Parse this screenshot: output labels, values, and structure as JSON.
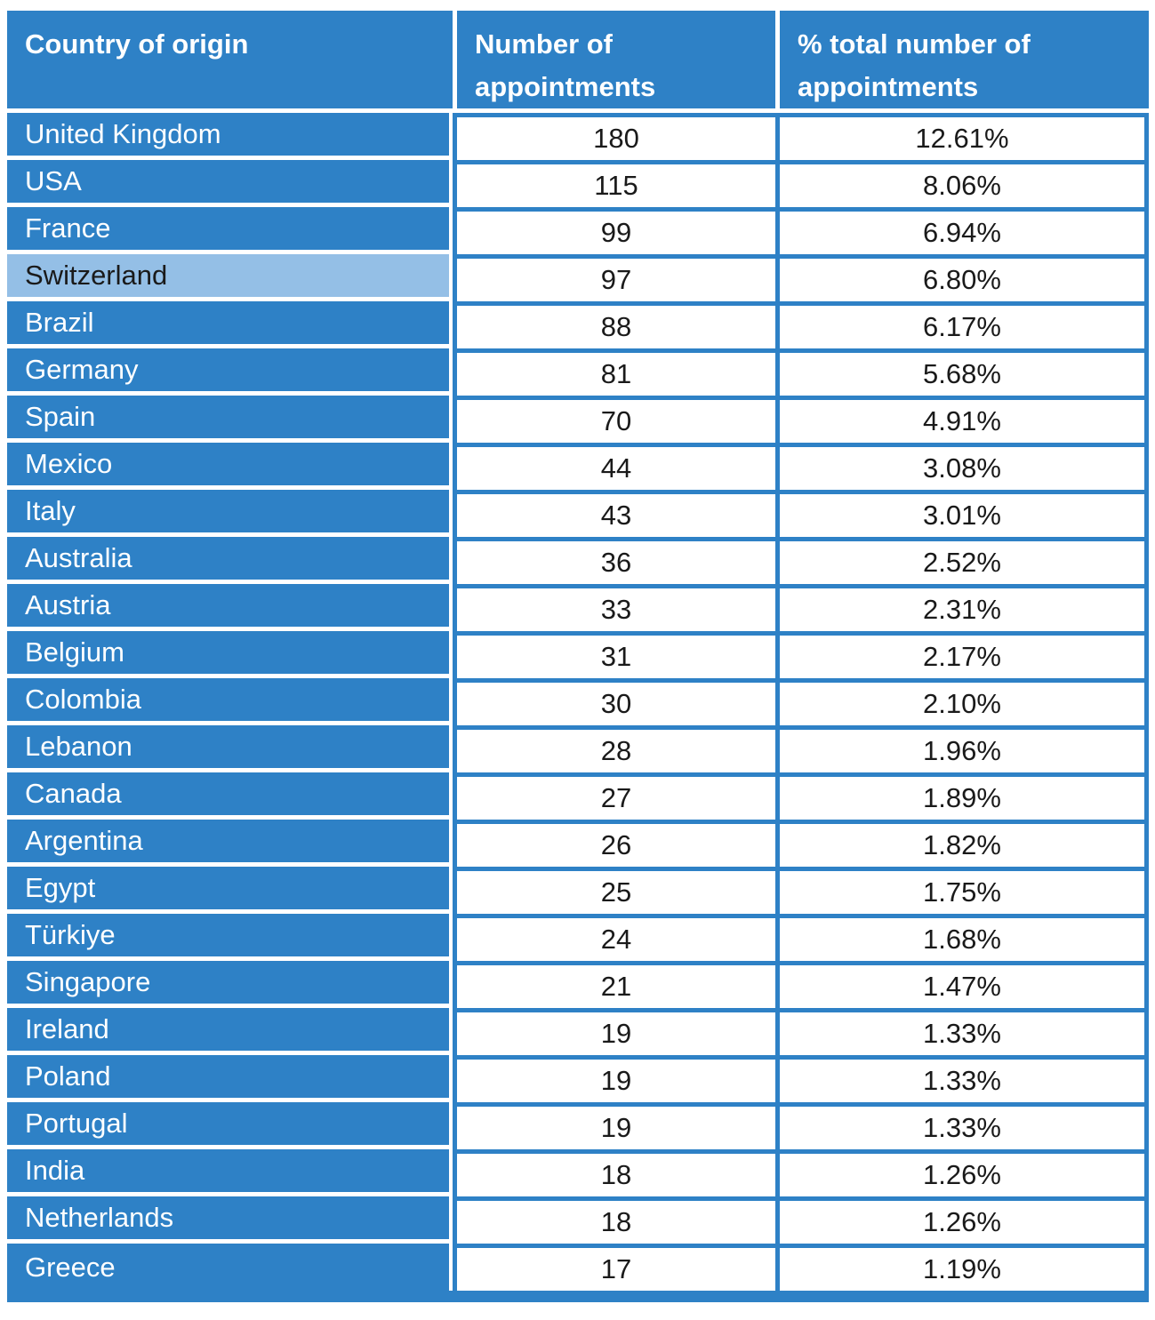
{
  "colors": {
    "primary_blue": "#2E81C6",
    "highlight_blue": "#94BFE6",
    "value_text": "#1A1A1A",
    "header_text": "#FFFFFF"
  },
  "chart_data": {
    "type": "table",
    "columns": [
      "Country of origin",
      "Number of appointments",
      "% total number of appointments"
    ],
    "rows": [
      [
        "United Kingdom",
        180,
        "12.61%"
      ],
      [
        "USA",
        115,
        "8.06%"
      ],
      [
        "France",
        99,
        "6.94%"
      ],
      [
        "Switzerland",
        97,
        "6.80%"
      ],
      [
        "Brazil",
        88,
        "6.17%"
      ],
      [
        "Germany",
        81,
        "5.68%"
      ],
      [
        "Spain",
        70,
        "4.91%"
      ],
      [
        "Mexico",
        44,
        "3.08%"
      ],
      [
        "Italy",
        43,
        "3.01%"
      ],
      [
        "Australia",
        36,
        "2.52%"
      ],
      [
        "Austria",
        33,
        "2.31%"
      ],
      [
        "Belgium",
        31,
        "2.17%"
      ],
      [
        "Colombia",
        30,
        "2.10%"
      ],
      [
        "Lebanon",
        28,
        "1.96%"
      ],
      [
        "Canada",
        27,
        "1.89%"
      ],
      [
        "Argentina",
        26,
        "1.82%"
      ],
      [
        "Egypt",
        25,
        "1.75%"
      ],
      [
        "Türkiye",
        24,
        "1.68%"
      ],
      [
        "Singapore",
        21,
        "1.47%"
      ],
      [
        "Ireland",
        19,
        "1.33%"
      ],
      [
        "Poland",
        19,
        "1.33%"
      ],
      [
        "Portugal",
        19,
        "1.33%"
      ],
      [
        "India",
        18,
        "1.26%"
      ],
      [
        "Netherlands",
        18,
        "1.26%"
      ],
      [
        "Greece",
        17,
        "1.19%"
      ]
    ],
    "highlighted_row": "Switzerland",
    "legend_position": "none",
    "grid": true
  }
}
